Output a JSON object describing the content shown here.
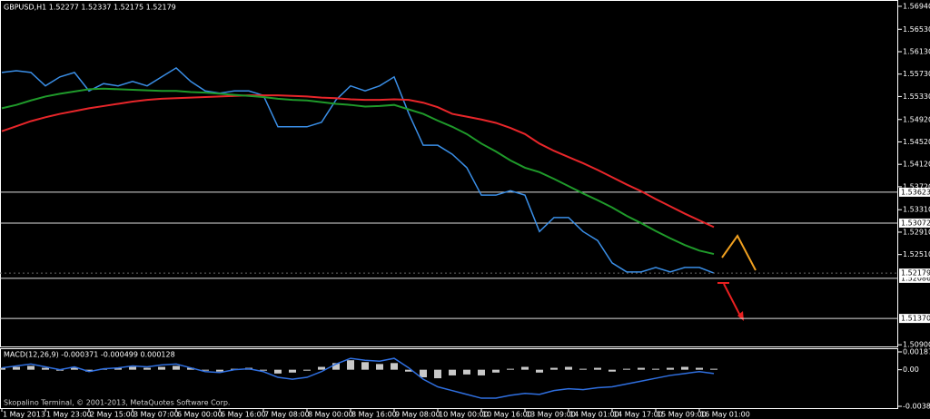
{
  "chart_data": [
    {
      "type": "line",
      "title": "GBPUSD,H1  1.52277 1.52337 1.52175 1.52179",
      "categories": [
        "1 May 2013",
        null,
        null,
        "1 May 23:00",
        null,
        null,
        "2 May 15:00",
        null,
        null,
        "3 May 07:00",
        null,
        null,
        "6 May 00:00",
        null,
        null,
        "6 May 16:00",
        null,
        null,
        "7 May 08:00",
        null,
        null,
        "8 May 00:00",
        null,
        null,
        "8 May 16:00",
        null,
        null,
        "9 May 08:00",
        null,
        null,
        "10 May 00:00",
        null,
        null,
        "10 May 16:00",
        null,
        null,
        "13 May 09:00",
        null,
        null,
        "14 May 01:00",
        null,
        null,
        "14 May 17:00",
        null,
        null,
        "15 May 09:00",
        null,
        null,
        "16 May 01:00",
        null
      ],
      "series": [
        {
          "color": "#3a8ee6",
          "values": [
            1.5576,
            1.5579,
            1.5576,
            1.5552,
            1.5568,
            1.5576,
            1.5543,
            1.5556,
            1.5552,
            1.556,
            1.5552,
            1.5568,
            1.5584,
            1.556,
            1.5543,
            1.5539,
            1.5543,
            1.5543,
            1.5535,
            1.5479,
            1.5479,
            1.5479,
            1.5487,
            1.5527,
            1.5552,
            1.5543,
            1.5552,
            1.5568,
            1.5503,
            1.5446,
            1.5446,
            1.543,
            1.5406,
            1.5357,
            1.5357,
            1.5365,
            1.5357,
            1.5292,
            1.5317,
            1.5317,
            1.5292,
            1.5276,
            1.5236,
            1.522,
            1.522,
            1.5228,
            1.522,
            1.5228,
            1.5228,
            1.5218
          ]
        },
        {
          "color": "#e8262a",
          "values": [
            1.5471,
            1.548,
            1.5489,
            1.5496,
            1.5502,
            1.5507,
            1.5512,
            1.5516,
            1.552,
            1.5524,
            1.5527,
            1.5529,
            1.553,
            1.5531,
            1.5532,
            1.5533,
            1.5534,
            1.5535,
            1.5535,
            1.5535,
            1.5534,
            1.5533,
            1.5531,
            1.553,
            1.5528,
            1.5527,
            1.5527,
            1.5528,
            1.5527,
            1.5522,
            1.5514,
            1.5502,
            1.5497,
            1.5492,
            1.5486,
            1.5477,
            1.5466,
            1.5449,
            1.5436,
            1.5425,
            1.5414,
            1.5402,
            1.5389,
            1.5376,
            1.5364,
            1.535,
            1.5337,
            1.5324,
            1.5312,
            1.53
          ]
        },
        {
          "color": "#1f9a2a",
          "values": [
            1.5512,
            1.5518,
            1.5526,
            1.5533,
            1.5538,
            1.5542,
            1.5546,
            1.5547,
            1.5546,
            1.5545,
            1.5544,
            1.5543,
            1.5543,
            1.5541,
            1.554,
            1.5538,
            1.5536,
            1.5534,
            1.5532,
            1.5529,
            1.5527,
            1.5526,
            1.5523,
            1.552,
            1.5518,
            1.5515,
            1.5516,
            1.5518,
            1.551,
            1.5502,
            1.549,
            1.5479,
            1.5466,
            1.5449,
            1.5435,
            1.5419,
            1.5406,
            1.5398,
            1.5386,
            1.5373,
            1.536,
            1.5348,
            1.5335,
            1.532,
            1.5307,
            1.5293,
            1.528,
            1.5268,
            1.5258,
            1.5252
          ]
        }
      ],
      "levels": [
        1.53623,
        1.53072,
        1.52086,
        {
          "value": 1.5137,
          "label": "1.51370"
        }
      ],
      "last_price": 1.52179,
      "ylim": [
        1.5087,
        1.5702
      ],
      "yticks": [
        {
          "value": 1.5694,
          "label": "1.56940"
        },
        {
          "value": 1.5653,
          "label": "1.56530"
        },
        {
          "value": 1.5613,
          "label": "1.56130"
        },
        {
          "value": 1.5573,
          "label": "1.55730"
        },
        {
          "value": 1.5533,
          "label": "1.55330"
        },
        {
          "value": 1.5492,
          "label": "1.54920"
        },
        {
          "value": 1.5452,
          "label": "1.54520"
        },
        {
          "value": 1.5412,
          "label": "1.54120"
        },
        {
          "value": 1.5372,
          "label": "1.53720"
        },
        {
          "value": 1.5331,
          "label": "1.53310"
        },
        {
          "value": 1.5291,
          "label": "1.52910"
        },
        {
          "value": 1.5251,
          "label": "1.52510"
        },
        {
          "value": 1.509,
          "label": "1.50900"
        }
      ],
      "grid": false
    },
    {
      "type": "bar",
      "title": "MACD(12,26,9) -0.000371 -0.000499 0.000128",
      "color": "#c8c8c8",
      "values": [
        0.0002,
        0.0003,
        0.0004,
        0.0002,
        -0.0001,
        0.0002,
        -0.0002,
        0.0001,
        0.0002,
        0.0003,
        0.0002,
        0.0003,
        0.0004,
        0.0002,
        -0.0001,
        -0.0002,
        0.0001,
        0.0002,
        -0.0001,
        -0.0004,
        -0.0003,
        -0.0001,
        0.0003,
        0.0007,
        0.001,
        0.0008,
        0.0006,
        0.0007,
        -0.0002,
        -0.0008,
        -0.0009,
        -0.0006,
        -0.0005,
        -0.0006,
        -0.0003,
        0.0001,
        0.0003,
        -0.0003,
        0.0002,
        0.0003,
        0.0001,
        0.0002,
        -0.0002,
        0.0001,
        0.0002,
        0.0001,
        0.0002,
        0.0003,
        0.0002,
        0.0001
      ],
      "series": [
        {
          "color": "#2f6fe0",
          "values": [
            0.0002,
            0.0004,
            0.0006,
            0.0003,
            0.0,
            0.0003,
            -0.0002,
            0.0001,
            0.0002,
            0.0004,
            0.0003,
            0.0005,
            0.0006,
            0.0002,
            -0.0002,
            -0.0003,
            0.0,
            0.0001,
            -0.0002,
            -0.0008,
            -0.001,
            -0.0008,
            -0.0002,
            0.0006,
            0.0012,
            0.001,
            0.0009,
            0.0012,
            0.0002,
            -0.001,
            -0.0018,
            -0.0022,
            -0.0026,
            -0.003,
            -0.003,
            -0.0027,
            -0.0025,
            -0.0026,
            -0.0022,
            -0.002,
            -0.0021,
            -0.0019,
            -0.0018,
            -0.0015,
            -0.0012,
            -0.0009,
            -0.0006,
            -0.0004,
            -0.0002,
            -0.0004
          ]
        }
      ],
      "ylim": [
        -0.003856,
        0.001879
      ],
      "yticks": [
        0.001879,
        {
          "value": 0,
          "label": "0.00"
        },
        -0.003856
      ]
    }
  ],
  "footer": "Skopalino Terminal, © 2001-2013, MetaQuotes Software Corp."
}
